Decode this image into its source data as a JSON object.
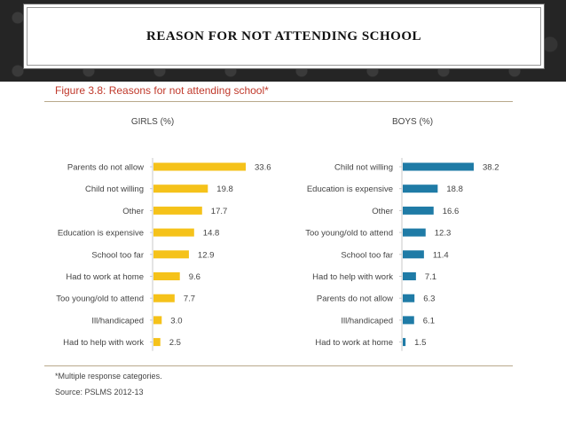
{
  "slide": {
    "title": "REASON FOR NOT ATTENDING SCHOOL"
  },
  "figure": {
    "title": "Figure 3.8: Reasons for not attending school*",
    "footnote": "*Multiple response categories.",
    "source": "Source: PSLMS 2012-13"
  },
  "colors": {
    "girls": "#f5c21a",
    "boys": "#1f7ba6",
    "axis": "#c8c8c8",
    "label": "#444444"
  },
  "chart_data": [
    {
      "type": "bar",
      "orientation": "horizontal",
      "title": "GIRLS (%)",
      "categories": [
        "Parents do not allow",
        "Child not willing",
        "Other",
        "Education is expensive",
        "School too far",
        "Had to work at home",
        "Too young/old to attend",
        "Ill/handicaped",
        "Had to help with work"
      ],
      "values": [
        33.6,
        19.8,
        17.7,
        14.8,
        12.9,
        9.6,
        7.7,
        3.0,
        2.5
      ],
      "value_labels": [
        "33.6",
        "19.8",
        "17.7",
        "14.8",
        "12.9",
        "9.6",
        "7.7",
        "3.0",
        "2.5"
      ],
      "xlim": [
        0,
        40
      ]
    },
    {
      "type": "bar",
      "orientation": "horizontal",
      "title": "BOYS (%)",
      "categories": [
        "Child not willing",
        "Education is expensive",
        "Other",
        "Too young/old to attend",
        "School too far",
        "Had to help with work",
        "Parents do not allow",
        "Ill/handicaped",
        "Had to work at home"
      ],
      "values": [
        38.2,
        18.8,
        16.6,
        12.3,
        11.4,
        7.1,
        6.3,
        6.1,
        1.5
      ],
      "value_labels": [
        "38.2",
        "18.8",
        "16.6",
        "12.3",
        "11.4",
        "7.1",
        "6.3",
        "6.1",
        "1.5"
      ],
      "xlim": [
        0,
        40
      ]
    }
  ]
}
